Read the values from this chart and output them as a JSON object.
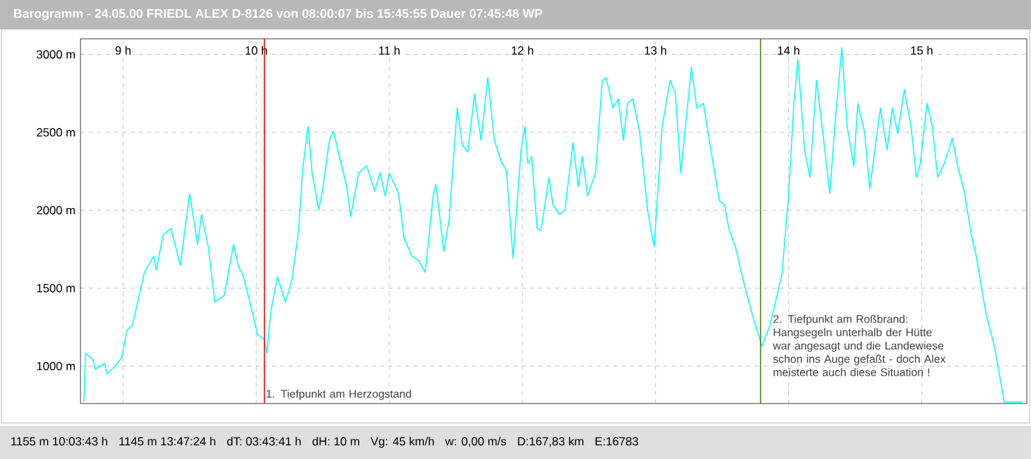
{
  "chart_data": {
    "type": "line",
    "title": "Barogramm - 24.05.00 FRIEDL ALEX D-8126 von 08:00:07 bis 15:45:55 Dauer 07:45:48 WP",
    "xlim": [
      8.68,
      15.79
    ],
    "ylim": [
      760,
      3100
    ],
    "xticks": [
      {
        "value": 9,
        "label": "9 h"
      },
      {
        "value": 10,
        "label": "10 h"
      },
      {
        "value": 11,
        "label": "11 h"
      },
      {
        "value": 12,
        "label": "12 h"
      },
      {
        "value": 13,
        "label": "13 h"
      },
      {
        "value": 14,
        "label": "14 h"
      },
      {
        "value": 15,
        "label": "15 h"
      }
    ],
    "yticks": [
      {
        "value": 1000,
        "label": "1000 m"
      },
      {
        "value": 1500,
        "label": "1500 m"
      },
      {
        "value": 2000,
        "label": "2000 m"
      },
      {
        "value": 2500,
        "label": "2500 m"
      },
      {
        "value": 3000,
        "label": "3000 m"
      }
    ],
    "grid": true,
    "marker": "none",
    "line_style": "solid",
    "x": [
      8.705,
      8.719,
      8.774,
      8.79,
      8.86,
      8.88,
      8.95,
      8.99,
      9.03,
      9.07,
      9.16,
      9.23,
      9.25,
      9.3,
      9.36,
      9.39,
      9.43,
      9.5,
      9.56,
      9.59,
      9.64,
      9.69,
      9.76,
      9.83,
      9.87,
      9.9,
      9.97,
      10.01,
      10.06,
      10.08,
      10.11,
      10.16,
      10.22,
      10.27,
      10.32,
      10.35,
      10.39,
      10.42,
      10.47,
      10.5,
      10.55,
      10.58,
      10.63,
      10.68,
      10.71,
      10.77,
      10.83,
      10.89,
      10.93,
      10.97,
      11.0,
      11.07,
      11.11,
      11.17,
      11.22,
      11.27,
      11.33,
      11.35,
      11.41,
      11.45,
      11.51,
      11.55,
      11.59,
      11.64,
      11.69,
      11.74,
      11.79,
      11.84,
      11.88,
      11.93,
      11.99,
      12.02,
      12.04,
      12.07,
      12.11,
      12.14,
      12.2,
      12.23,
      12.28,
      12.32,
      12.38,
      12.42,
      12.45,
      12.49,
      12.55,
      12.6,
      12.63,
      12.68,
      12.72,
      12.76,
      12.79,
      12.83,
      12.88,
      12.94,
      12.99,
      13.05,
      13.11,
      13.15,
      13.19,
      13.27,
      13.31,
      13.36,
      13.41,
      13.48,
      13.52,
      13.55,
      13.6,
      13.67,
      13.74,
      13.8,
      13.86,
      13.95,
      14.0,
      14.04,
      14.07,
      14.12,
      14.16,
      14.21,
      14.26,
      14.31,
      14.35,
      14.4,
      14.44,
      14.49,
      14.52,
      14.57,
      14.61,
      14.69,
      14.74,
      14.78,
      14.82,
      14.87,
      14.92,
      14.96,
      14.99,
      15.04,
      15.08,
      15.12,
      15.17,
      15.23,
      15.27,
      15.32,
      15.37,
      15.41,
      15.48,
      15.55,
      15.62,
      15.76
    ],
    "series": [
      {
        "color": "#00ffff",
        "values": [
          770,
          1083,
          1039,
          980,
          1018,
          950,
          1010,
          1054,
          1232,
          1261,
          1602,
          1706,
          1617,
          1840,
          1884,
          1781,
          1647,
          2107,
          1781,
          1973,
          1766,
          1410,
          1454,
          1781,
          1632,
          1588,
          1350,
          1202,
          1172,
          1083,
          1350,
          1573,
          1410,
          1558,
          1884,
          2270,
          2537,
          2240,
          2003,
          2137,
          2448,
          2507,
          2329,
          2151,
          1959,
          2240,
          2285,
          2122,
          2240,
          2092,
          2240,
          2107,
          1825,
          1706,
          1677,
          1602,
          2092,
          2166,
          1736,
          1944,
          2656,
          2418,
          2374,
          2745,
          2448,
          2849,
          2448,
          2315,
          2255,
          1692,
          2389,
          2537,
          2300,
          2344,
          1884,
          1870,
          2211,
          2033,
          1973,
          2003,
          2433,
          2151,
          2344,
          2092,
          2240,
          2834,
          2849,
          2656,
          2715,
          2448,
          2686,
          2715,
          2507,
          2003,
          1766,
          2537,
          2834,
          2745,
          2240,
          2917,
          2656,
          2686,
          2418,
          2062,
          2033,
          1884,
          1766,
          1513,
          1291,
          1128,
          1261,
          1588,
          2092,
          2686,
          2967,
          2389,
          2211,
          2834,
          2478,
          2107,
          2567,
          3042,
          2537,
          2285,
          2686,
          2507,
          2137,
          2656,
          2389,
          2656,
          2493,
          2775,
          2537,
          2211,
          2300,
          2686,
          2537,
          2211,
          2300,
          2463,
          2285,
          2122,
          1855,
          1706,
          1350,
          1113,
          770,
          770
        ]
      }
    ],
    "ref_lines": [
      {
        "axis": "x",
        "value": 10.062,
        "color": "#ff0000"
      },
      {
        "axis": "x",
        "value": 13.79,
        "color": "#4d7f00"
      }
    ],
    "annotations": [
      {
        "text": "1. Tiefpunkt am Herzogstand",
        "x": 10.06,
        "y": 860
      },
      {
        "text": "2. Tiefpunkt am Roßbrand: Hangsegeln unterhalb der Hütte war angesagt und die Landewiese schon ins Auge gefaßt - doch Alex meisterte auch diese Situation !",
        "x": 13.87,
        "y": 1340
      },
      "1155 m 10:03:43 h",
      "1145 m 13:47:24 h",
      "dT: 03:43:41 h",
      "dH: 10 m",
      "Vg: 45 km/h",
      "w: 0,00 m/s",
      "D:167,83 km",
      "E:16783"
    ]
  }
}
